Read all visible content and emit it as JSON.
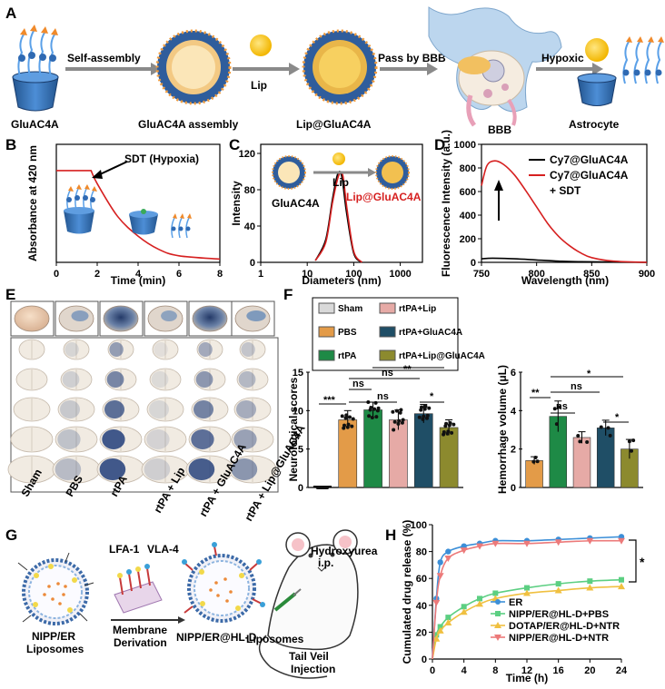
{
  "panel_labels": {
    "A": "A",
    "B": "B",
    "C": "C",
    "D": "D",
    "E": "E",
    "F": "F",
    "G": "G",
    "H": "H"
  },
  "panelA": {
    "arrow_labels": [
      "Self-assembly",
      "Lip",
      "Pass by BBB",
      "Hypoxic"
    ],
    "captions": [
      "GluAC4A",
      "GluAC4A assembly",
      "Lip@GluAC4A",
      "BBB",
      "Astrocyte"
    ]
  },
  "panelB": {
    "ylabel": "Absorbance at 420 nm",
    "xlabel": "Time (min)",
    "annotation": "SDT (Hypoxia)",
    "xticks": [
      "0",
      "2",
      "4",
      "6",
      "8"
    ],
    "colors": {
      "line": "#d62020"
    }
  },
  "panelC": {
    "ylabel": "Intensity",
    "xlabel": "Diameters (nm)",
    "yticks": [
      "0",
      "40",
      "80",
      "120"
    ],
    "xticks": [
      "1",
      "10",
      "100",
      "1000"
    ],
    "inset_lip": "Lip",
    "legend": [
      "GluAC4A",
      "Lip@GluAC4A"
    ],
    "colors": {
      "gluac4a": "#000000",
      "lip": "#d62020"
    }
  },
  "panelD": {
    "ylabel": "Fluorescence Intensity (a.u.)",
    "xlabel": "Wavelength (nm)",
    "yticks": [
      "0",
      "200",
      "400",
      "600",
      "800",
      "1000"
    ],
    "xticks": [
      "750",
      "800",
      "850",
      "900"
    ],
    "legend": [
      "Cy7@GluAC4A",
      "Cy7@GluAC4A",
      "+ SDT"
    ]
  },
  "panelE": {
    "groups": [
      "Sham",
      "PBS",
      "rtPA",
      "rtPA + Lip",
      "rtPA + GluAC4A",
      "rtPA + Lip@GluAC4A"
    ]
  },
  "panelF": {
    "legend": [
      "Sham",
      "rtPA+Lip",
      "PBS",
      "rtPA+GluAC4A",
      "rtPA",
      "rtPA+Lip@GluAC4A"
    ],
    "left_ylabel": "Neurological scores",
    "left_yticks": [
      "0",
      "5",
      "10",
      "15"
    ],
    "right_ylabel": "Hemorrhage volume (μL)",
    "right_yticks": [
      "0",
      "2",
      "4",
      "6"
    ],
    "sig_left": [
      "***",
      "ns",
      "ns",
      "ns",
      "**",
      "*"
    ],
    "sig_right": [
      "**",
      "ns",
      "ns",
      "*",
      "*"
    ],
    "colors": {
      "Sham": "#d9d9d9",
      "PBS": "#e39b48",
      "rtPA": "#1e8a46",
      "rtPA+Lip": "#e6aaa6",
      "rtPA+GluAC4A": "#1f4e66",
      "rtPA+Lip@GluAC4A": "#8c8a2e"
    }
  },
  "panelG": {
    "labels": [
      "LFA-1",
      "VLA-4",
      "Hydroxyurea",
      "i.p.",
      "Membrane",
      "Derivation",
      "NIPP/ER",
      "Liposomes",
      "NIPP/ER@HL-D",
      "Liposomes",
      "Tail Veil",
      "Injection"
    ]
  },
  "chart_data": [
    {
      "type": "line",
      "panel": "B",
      "title": "",
      "xlabel": "Time (min)",
      "ylabel": "Absorbance at 420 nm",
      "xlim": [
        0,
        8
      ],
      "series": [
        {
          "name": "GluAC4A",
          "x": [
            0,
            1.7,
            2,
            3,
            4,
            5,
            6,
            8
          ],
          "y": [
            0.28,
            0.28,
            0.24,
            0.14,
            0.08,
            0.04,
            0.02,
            0.01
          ]
        }
      ]
    },
    {
      "type": "line",
      "panel": "C",
      "title": "",
      "xlabel": "Diameters (nm)",
      "ylabel": "Intensity",
      "xscale": "log",
      "xlim": [
        1,
        3000
      ],
      "ylim": [
        0,
        130
      ],
      "series": [
        {
          "name": "GluAC4A",
          "x": [
            15,
            25,
            35,
            45,
            55,
            70,
            100,
            150
          ],
          "y": [
            2,
            25,
            70,
            97,
            95,
            55,
            10,
            0
          ]
        },
        {
          "name": "Lip@GluAC4A",
          "x": [
            15,
            25,
            35,
            47,
            58,
            72,
            100,
            150
          ],
          "y": [
            2,
            22,
            66,
            95,
            96,
            58,
            12,
            0
          ]
        }
      ]
    },
    {
      "type": "line",
      "panel": "D",
      "title": "",
      "xlabel": "Wavelength (nm)",
      "ylabel": "Fluorescence Intensity (a.u.)",
      "xlim": [
        750,
        900
      ],
      "ylim": [
        0,
        1000
      ],
      "series": [
        {
          "name": "Cy7@GluAC4A",
          "x": [
            750,
            760,
            780,
            800,
            820,
            840,
            900
          ],
          "y": [
            30,
            35,
            30,
            20,
            10,
            5,
            0
          ]
        },
        {
          "name": "Cy7@GluAC4A + SDT",
          "x": [
            750,
            755,
            762,
            770,
            780,
            790,
            800,
            810,
            820,
            830,
            840,
            850,
            870,
            900
          ],
          "y": [
            650,
            820,
            860,
            830,
            740,
            610,
            470,
            330,
            220,
            140,
            80,
            40,
            10,
            0
          ]
        }
      ]
    },
    {
      "type": "bar",
      "panel": "F-left",
      "ylabel": "Neurological scores",
      "ylim": [
        0,
        15
      ],
      "categories": [
        "Sham",
        "PBS",
        "rtPA",
        "rtPA+Lip",
        "rtPA+GluAC4A",
        "rtPA+Lip@GluAC4A"
      ],
      "values": [
        0,
        8.8,
        10.1,
        8.8,
        9.6,
        7.8
      ],
      "errors": [
        0,
        1.2,
        1.0,
        1.3,
        1.2,
        1.0
      ]
    },
    {
      "type": "bar",
      "panel": "F-right",
      "ylabel": "Hemorrhage volume (μL)",
      "ylim": [
        0,
        6
      ],
      "categories": [
        "PBS",
        "rtPA",
        "rtPA+Lip",
        "rtPA+GluAC4A",
        "rtPA+Lip@GluAC4A"
      ],
      "values": [
        1.4,
        3.7,
        2.6,
        3.1,
        2.0
      ],
      "errors": [
        0.2,
        0.8,
        0.3,
        0.4,
        0.5
      ]
    },
    {
      "type": "line",
      "panel": "H",
      "title": "",
      "xlabel": "Time (h)",
      "ylabel": "Cumulated drug release (%)",
      "xlim": [
        0,
        24
      ],
      "ylim": [
        0,
        100
      ],
      "xticks": [
        "0",
        "4",
        "8",
        "12",
        "16",
        "20",
        "24"
      ],
      "yticks": [
        "0",
        "20",
        "40",
        "60",
        "80",
        "100"
      ],
      "significance": "*",
      "series": [
        {
          "name": "ER",
          "color": "#3c8fd8",
          "x": [
            0,
            0.5,
            1,
            2,
            4,
            6,
            8,
            12,
            16,
            20,
            24
          ],
          "y": [
            0,
            45,
            72,
            80,
            84,
            86,
            88,
            88,
            89,
            90,
            91
          ]
        },
        {
          "name": "NIPP/ER@HL-D+PBS",
          "color": "#5ccf82",
          "x": [
            0,
            0.5,
            1,
            2,
            4,
            6,
            8,
            12,
            16,
            20,
            24
          ],
          "y": [
            0,
            18,
            24,
            31,
            39,
            45,
            49,
            53,
            56,
            58,
            59
          ]
        },
        {
          "name": "DOTAP/ER@HL-D+NTR",
          "color": "#f0c040",
          "x": [
            0,
            0.5,
            1,
            2,
            4,
            6,
            8,
            12,
            16,
            20,
            24
          ],
          "y": [
            0,
            15,
            21,
            27,
            35,
            41,
            45,
            49,
            51,
            53,
            54
          ]
        },
        {
          "name": "NIPP/ER@HL-D+NTR",
          "color": "#ec7a7a",
          "x": [
            0,
            0.5,
            1,
            2,
            4,
            6,
            8,
            12,
            16,
            20,
            24
          ],
          "y": [
            0,
            42,
            62,
            75,
            81,
            84,
            86,
            86,
            87,
            88,
            88
          ]
        }
      ]
    }
  ]
}
